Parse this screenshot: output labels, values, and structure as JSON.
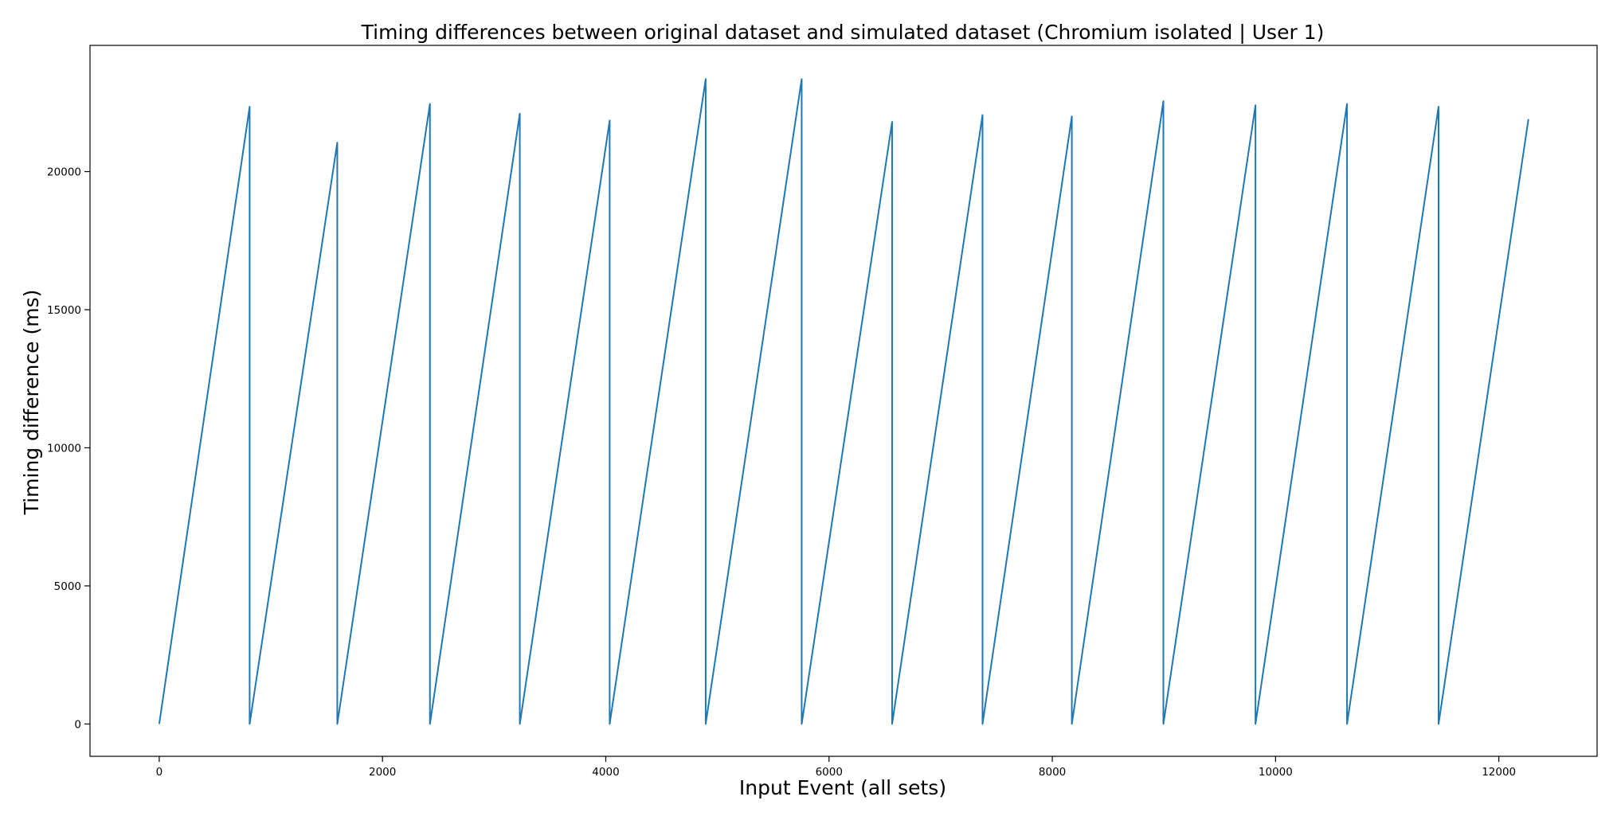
{
  "chart_data": {
    "type": "line",
    "title": "Timing differences between original dataset and simulated dataset (Chromium isolated | User 1)",
    "xlabel": "Input Event (all sets)",
    "ylabel": "Timing difference (ms)",
    "xlim": [
      -620,
      12880
    ],
    "ylim": [
      -1170,
      24570
    ],
    "xticks": [
      0,
      2000,
      4000,
      6000,
      8000,
      10000,
      12000
    ],
    "yticks": [
      0,
      5000,
      10000,
      15000,
      20000
    ],
    "grid": false,
    "legend": "none",
    "series": [
      {
        "color": "#1f77b4",
        "x": [
          0,
          810,
          810,
          1595,
          1595,
          2425,
          2425,
          3230,
          3230,
          4035,
          4035,
          4895,
          4895,
          5755,
          5755,
          6565,
          6565,
          7375,
          7375,
          8175,
          8175,
          8995,
          8995,
          9820,
          9820,
          10640,
          10640,
          11460,
          11460,
          12265
        ],
        "y": [
          0,
          22350,
          0,
          21050,
          0,
          22450,
          0,
          22100,
          0,
          21850,
          0,
          23350,
          0,
          23350,
          0,
          21800,
          0,
          22050,
          0,
          22000,
          0,
          22550,
          0,
          22400,
          0,
          22450,
          0,
          22350,
          0,
          21900
        ]
      }
    ]
  }
}
